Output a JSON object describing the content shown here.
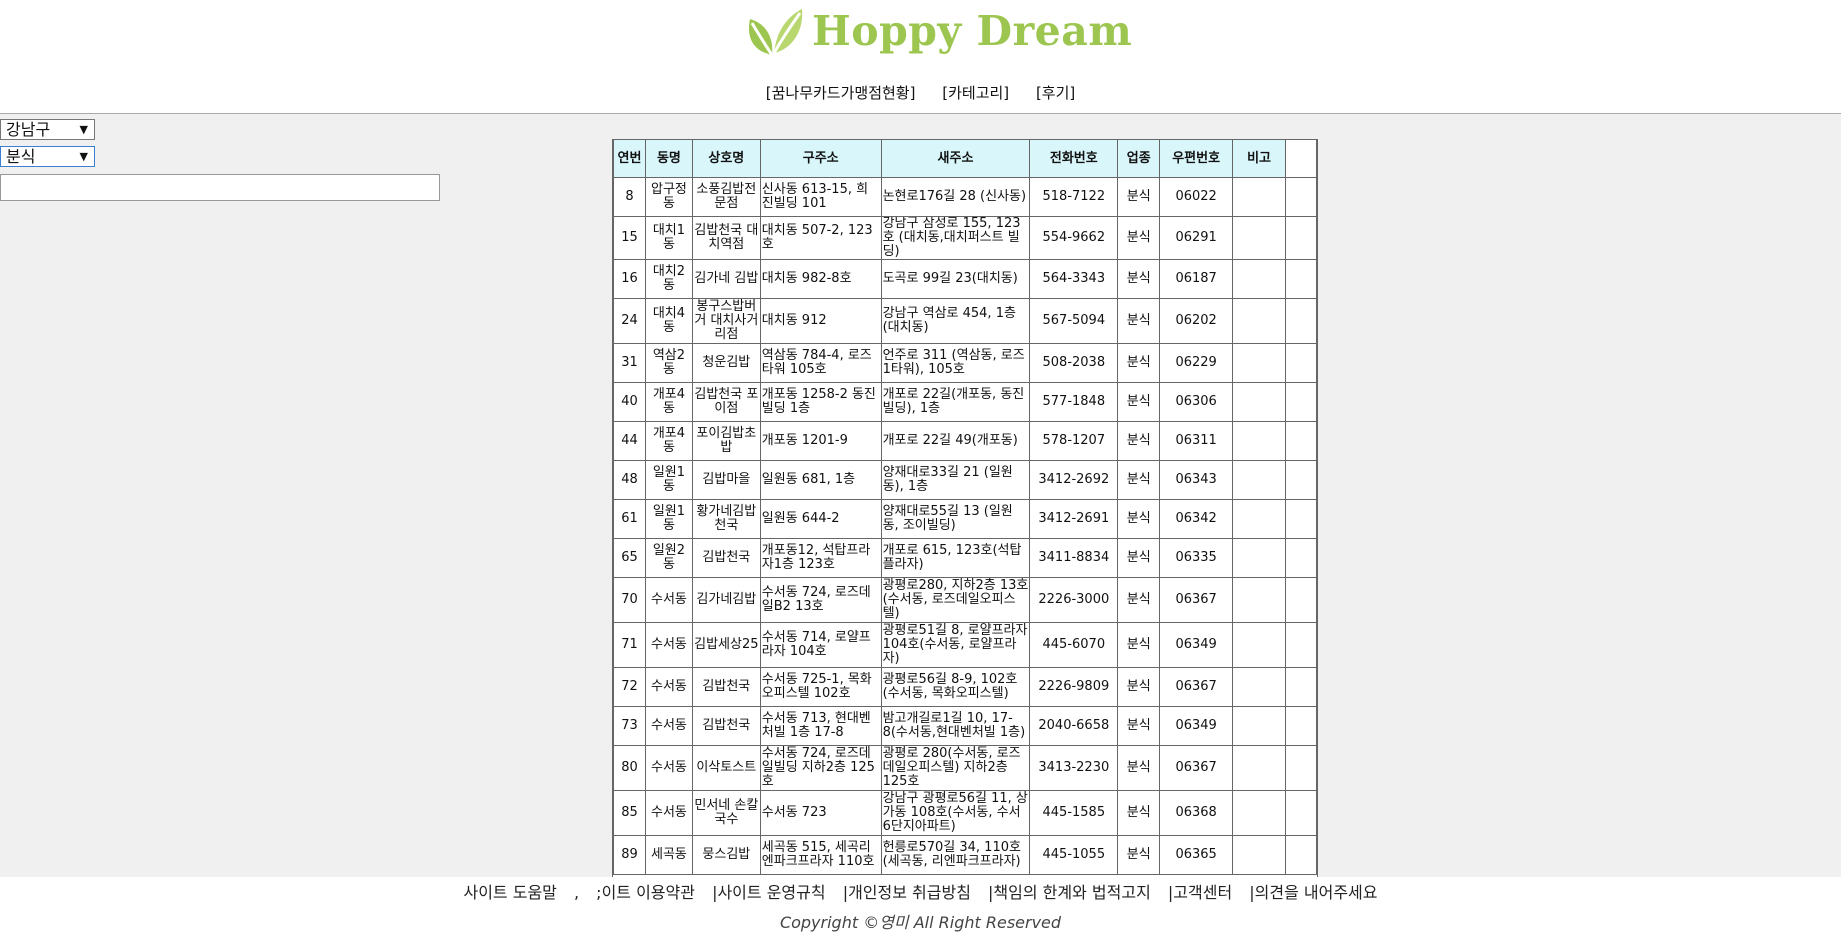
{
  "brand": {
    "name": "Hoppy Dream",
    "color": "#9dc650"
  },
  "nav": [
    "[꿈나무카드가맹점현황]",
    "[카테고리]",
    "[후기]"
  ],
  "filters": {
    "district": "강남구",
    "category": "분식",
    "search_value": ""
  },
  "table": {
    "headers": [
      "연번",
      "동명",
      "상호명",
      "구주소",
      "새주소",
      "전화번호",
      "업종",
      "우편번호",
      "비고"
    ],
    "rows": [
      [
        "8",
        "압구정동",
        "소풍김밥전문점",
        "신사동 613-15, 희진빌딩 101",
        "논현로176길 28 (신사동)",
        "518-7122",
        "분식",
        "06022",
        ""
      ],
      [
        "15",
        "대치1동",
        "김밥천국 대치역점",
        "대치동 507-2, 123호",
        "강남구 삼성로 155, 123호 (대치동,대치퍼스트 빌딩)",
        "554-9662",
        "분식",
        "06291",
        ""
      ],
      [
        "16",
        "대치2동",
        "김가네 김밥",
        "대치동 982-8호",
        "도곡로 99길 23(대치동)",
        "564-3343",
        "분식",
        "06187",
        ""
      ],
      [
        "24",
        "대치4동",
        "봉구스밥버거 대치사거리점",
        "대치동 912",
        "강남구 역삼로 454, 1층 (대치동)",
        "567-5094",
        "분식",
        "06202",
        ""
      ],
      [
        "31",
        "역삼2동",
        "청운김밥",
        "역삼동 784-4, 로즈타워 105호",
        "언주로 311 (역삼동, 로즈1타워), 105호",
        "508-2038",
        "분식",
        "06229",
        ""
      ],
      [
        "40",
        "개포4동",
        "김밥천국 포이점",
        "개포동 1258-2 동진빌딩 1층",
        "개포로 22길(개포동, 동진빌딩), 1층",
        "577-1848",
        "분식",
        "06306",
        ""
      ],
      [
        "44",
        "개포4동",
        "포이김밥초밥",
        "개포동 1201-9",
        "개포로 22길 49(개포동)",
        "578-1207",
        "분식",
        "06311",
        ""
      ],
      [
        "48",
        "일원1동",
        "김밥마을",
        "일원동 681, 1층",
        "양재대로33길 21 (일원동), 1층",
        "3412-2692",
        "분식",
        "06343",
        ""
      ],
      [
        "61",
        "일원1동",
        "황가네김밥천국",
        "일원동 644-2",
        "양재대로55길 13 (일원동, 조이빌딩)",
        "3412-2691",
        "분식",
        "06342",
        ""
      ],
      [
        "65",
        "일원2동",
        "김밥천국",
        "개포동12, 석탑프라자1층 123호",
        "개포로 615, 123호(석탑플라자)",
        "3411-8834",
        "분식",
        "06335",
        ""
      ],
      [
        "70",
        "수서동",
        "김가네김밥",
        "수서동 724, 로즈데일B2 13호",
        "광평로280, 지하2층 13호 (수서동, 로즈데일오피스텔)",
        "2226-3000",
        "분식",
        "06367",
        ""
      ],
      [
        "71",
        "수서동",
        "김밥세상25",
        "수서동 714, 로얄프라자 104호",
        "광평로51길 8, 로얄프라자 104호(수서동, 로얄프라자)",
        "445-6070",
        "분식",
        "06349",
        ""
      ],
      [
        "72",
        "수서동",
        "김밥천국",
        "수서동 725-1, 목화오피스텔 102호",
        "광평로56길 8-9, 102호(수서동, 목화오피스텔)",
        "2226-9809",
        "분식",
        "06367",
        ""
      ],
      [
        "73",
        "수서동",
        "김밥천국",
        "수서동 713, 현대벤처빌 1층 17-8",
        "밤고개길로1길 10, 17-8(수서동,현대벤처빌 1층)",
        "2040-6658",
        "분식",
        "06349",
        ""
      ],
      [
        "80",
        "수서동",
        "이삭토스트",
        "수서동 724, 로즈데일빌딩 지하2층 125호",
        "광평로 280(수서동, 로즈데일오피스텔) 지하2층 125호",
        "3413-2230",
        "분식",
        "06367",
        ""
      ],
      [
        "85",
        "수서동",
        "민서네 손칼국수",
        "수서동 723",
        "강남구 광평로56길 11, 상가동 108호(수서동, 수서6단지아파트)",
        "445-1585",
        "분식",
        "06368",
        ""
      ],
      [
        "89",
        "세곡동",
        "뭉스김밥",
        "세곡동 515, 세곡리엔파크프라자 110호",
        "헌릉로570길 34, 110호(세곡동, 리엔파크프라자)",
        "445-1055",
        "분식",
        "06365",
        ""
      ]
    ]
  },
  "footer": {
    "links": [
      "사이트 도움말",
      ";이트 이용약관",
      "|사이트 운영규칙",
      "|개인정보 취급방침",
      "|책임의 한계와 법적고지",
      "|고객센터",
      "|의견을 내어주세요"
    ],
    "copyright": "Copyright ©영미 All Right Reserved"
  }
}
